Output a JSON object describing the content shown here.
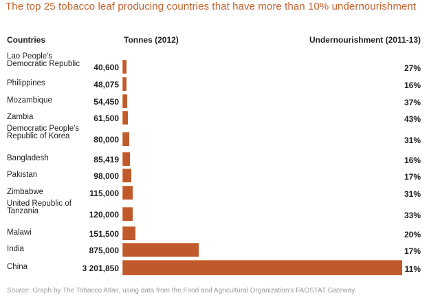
{
  "title": "The top 25 tobacco leaf producing countries that have more than 10% undernourishment",
  "headers": {
    "countries": "Countries",
    "tonnes": "Tonnes (2012)",
    "undernourishment": "Undernourishment (2011-13)"
  },
  "source": {
    "label": "Source:",
    "text": "Graph by The Tobacco Atlas, using data from the Food and Agricultural Organization's FAOSTAT Gateway."
  },
  "colors": {
    "bar": "#c05a2c",
    "title": "#c5612b"
  },
  "chart_data": {
    "type": "bar",
    "orientation": "horizontal",
    "title": "The top 25 tobacco leaf producing countries that have more than 10% undernourishment",
    "xlabel": "Tonnes (2012)",
    "ylabel": "Countries",
    "xlim": [
      0,
      3201850
    ],
    "grid": false,
    "categories": [
      "Lao People's Democratic Republic",
      "Philippines",
      "Mozambique",
      "Zambia",
      "Democratic People's Republic of Korea",
      "Bangladesh",
      "Pakistan",
      "Zimbabwe",
      "United Republic of Tanzania",
      "Malawi",
      "India",
      "China"
    ],
    "rows": [
      {
        "country": "Lao People's Democratic Republic",
        "tonnes": 40600,
        "tonnes_label": "40,600",
        "undernourishment": "27%"
      },
      {
        "country": "Philippines",
        "tonnes": 48075,
        "tonnes_label": "48,075",
        "undernourishment": "16%"
      },
      {
        "country": "Mozambique",
        "tonnes": 54450,
        "tonnes_label": "54,450",
        "undernourishment": "37%"
      },
      {
        "country": "Zambia",
        "tonnes": 61500,
        "tonnes_label": "61,500",
        "undernourishment": "43%"
      },
      {
        "country": "Democratic People's Republic of Korea",
        "tonnes": 80000,
        "tonnes_label": "80,000",
        "undernourishment": "31%"
      },
      {
        "country": "Bangladesh",
        "tonnes": 85419,
        "tonnes_label": "85,419",
        "undernourishment": "16%"
      },
      {
        "country": "Pakistan",
        "tonnes": 98000,
        "tonnes_label": "98,000",
        "undernourishment": "17%"
      },
      {
        "country": "Zimbabwe",
        "tonnes": 115000,
        "tonnes_label": "115,000",
        "undernourishment": "31%"
      },
      {
        "country": "United Republic of Tanzania",
        "tonnes": 120000,
        "tonnes_label": "120,000",
        "undernourishment": "33%"
      },
      {
        "country": "Malawi",
        "tonnes": 151500,
        "tonnes_label": "151,500",
        "undernourishment": "20%"
      },
      {
        "country": "India",
        "tonnes": 875000,
        "tonnes_label": "875,000",
        "undernourishment": "17%"
      },
      {
        "country": "China",
        "tonnes": 3201850,
        "tonnes_label": "3 201,850",
        "undernourishment": "11%"
      }
    ]
  }
}
